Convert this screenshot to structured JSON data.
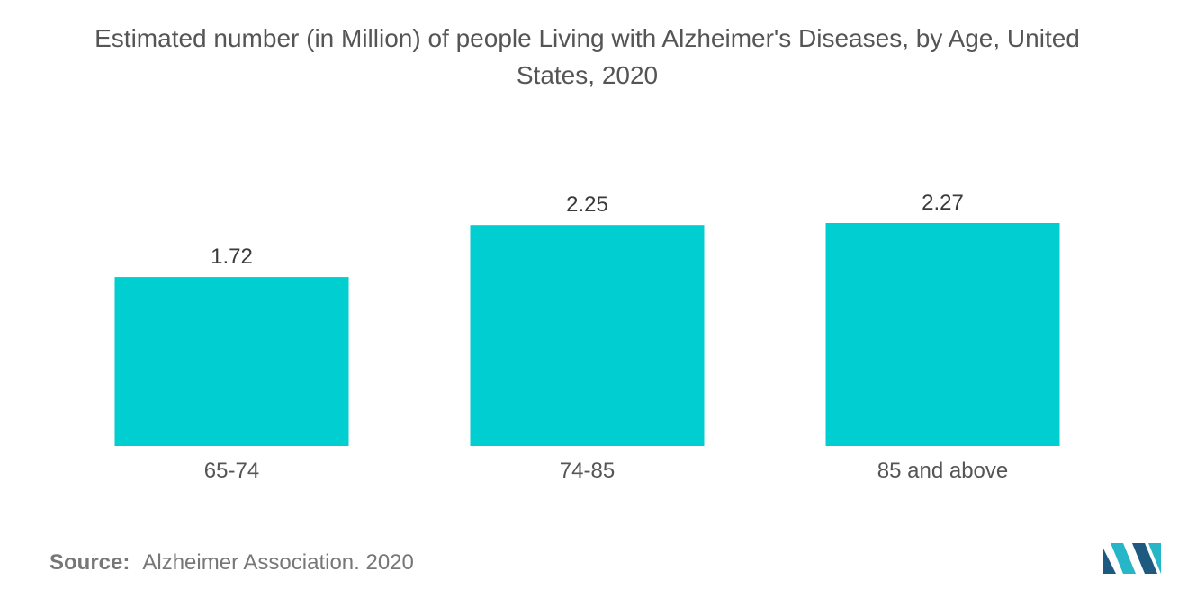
{
  "title_lines": [
    "Estimated number (in Million) of people Living with Alzheimer's Diseases, by Age, United",
    "States, 2020"
  ],
  "source": {
    "label": "Source:",
    "text": "Alzheimer Association. 2020"
  },
  "colors": {
    "bar": "#00CED1",
    "logo_dark": "#1E5A80",
    "logo_light": "#27B6C7"
  },
  "chart_data": {
    "type": "bar",
    "title": "Estimated number (in Million) of people Living with Alzheimer's Diseases, by Age, United States, 2020",
    "categories": [
      "65-74",
      "74-85",
      "85 and above"
    ],
    "values": [
      1.72,
      2.25,
      2.27
    ],
    "data_labels": [
      "1.72",
      "2.25",
      "2.27"
    ],
    "xlabel": "",
    "ylabel": "",
    "ylim": [
      0,
      2.27
    ],
    "grid": false,
    "legend": "none"
  }
}
